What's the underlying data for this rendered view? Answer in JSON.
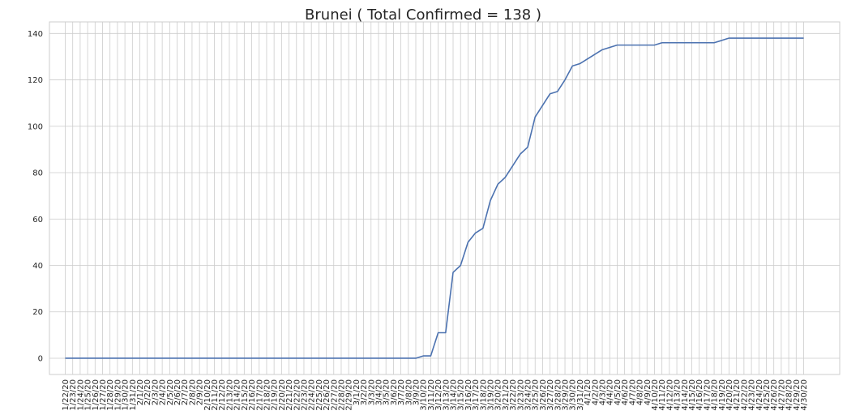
{
  "chart_data": {
    "type": "line",
    "title": "Brunei ( Total Confirmed = 138 )",
    "xlabel": "",
    "ylabel": "",
    "ylim": [
      -7,
      145
    ],
    "yticks": [
      0,
      20,
      40,
      60,
      80,
      100,
      120,
      140
    ],
    "grid": true,
    "legend": "none",
    "colors": {
      "line": "#4c72b0",
      "grid": "#cccccc",
      "frame": "#cccccc",
      "text": "#262626"
    },
    "x": [
      "1/22/20",
      "1/23/20",
      "1/24/20",
      "1/25/20",
      "1/26/20",
      "1/27/20",
      "1/28/20",
      "1/29/20",
      "1/30/20",
      "1/31/20",
      "2/1/20",
      "2/2/20",
      "2/3/20",
      "2/4/20",
      "2/5/20",
      "2/6/20",
      "2/7/20",
      "2/8/20",
      "2/9/20",
      "2/10/20",
      "2/11/20",
      "2/12/20",
      "2/13/20",
      "2/14/20",
      "2/15/20",
      "2/16/20",
      "2/17/20",
      "2/18/20",
      "2/19/20",
      "2/20/20",
      "2/21/20",
      "2/22/20",
      "2/23/20",
      "2/24/20",
      "2/25/20",
      "2/26/20",
      "2/27/20",
      "2/28/20",
      "2/29/20",
      "3/1/20",
      "3/2/20",
      "3/3/20",
      "3/4/20",
      "3/5/20",
      "3/6/20",
      "3/7/20",
      "3/8/20",
      "3/9/20",
      "3/10/20",
      "3/11/20",
      "3/12/20",
      "3/13/20",
      "3/14/20",
      "3/15/20",
      "3/16/20",
      "3/17/20",
      "3/18/20",
      "3/19/20",
      "3/20/20",
      "3/21/20",
      "3/22/20",
      "3/23/20",
      "3/24/20",
      "3/25/20",
      "3/26/20",
      "3/27/20",
      "3/28/20",
      "3/29/20",
      "3/30/20",
      "3/31/20",
      "4/1/20",
      "4/2/20",
      "4/3/20",
      "4/4/20",
      "4/5/20",
      "4/6/20",
      "4/7/20",
      "4/8/20",
      "4/9/20",
      "4/10/20",
      "4/11/20",
      "4/12/20",
      "4/13/20",
      "4/14/20",
      "4/15/20",
      "4/16/20",
      "4/17/20",
      "4/18/20",
      "4/19/20",
      "4/20/20",
      "4/21/20",
      "4/22/20",
      "4/23/20",
      "4/24/20",
      "4/25/20",
      "4/26/20",
      "4/27/20",
      "4/28/20",
      "4/29/20",
      "4/30/20"
    ],
    "series": [
      {
        "values": [
          0,
          0,
          0,
          0,
          0,
          0,
          0,
          0,
          0,
          0,
          0,
          0,
          0,
          0,
          0,
          0,
          0,
          0,
          0,
          0,
          0,
          0,
          0,
          0,
          0,
          0,
          0,
          0,
          0,
          0,
          0,
          0,
          0,
          0,
          0,
          0,
          0,
          0,
          0,
          0,
          0,
          0,
          0,
          0,
          0,
          0,
          0,
          0,
          1,
          1,
          11,
          11,
          37,
          40,
          50,
          54,
          56,
          68,
          75,
          78,
          83,
          88,
          91,
          104,
          109,
          114,
          115,
          120,
          126,
          127,
          129,
          131,
          133,
          134,
          135,
          135,
          135,
          135,
          135,
          135,
          136,
          136,
          136,
          136,
          136,
          136,
          136,
          136,
          137,
          138,
          138,
          138,
          138,
          138,
          138,
          138,
          138,
          138,
          138,
          138
        ]
      }
    ]
  }
}
